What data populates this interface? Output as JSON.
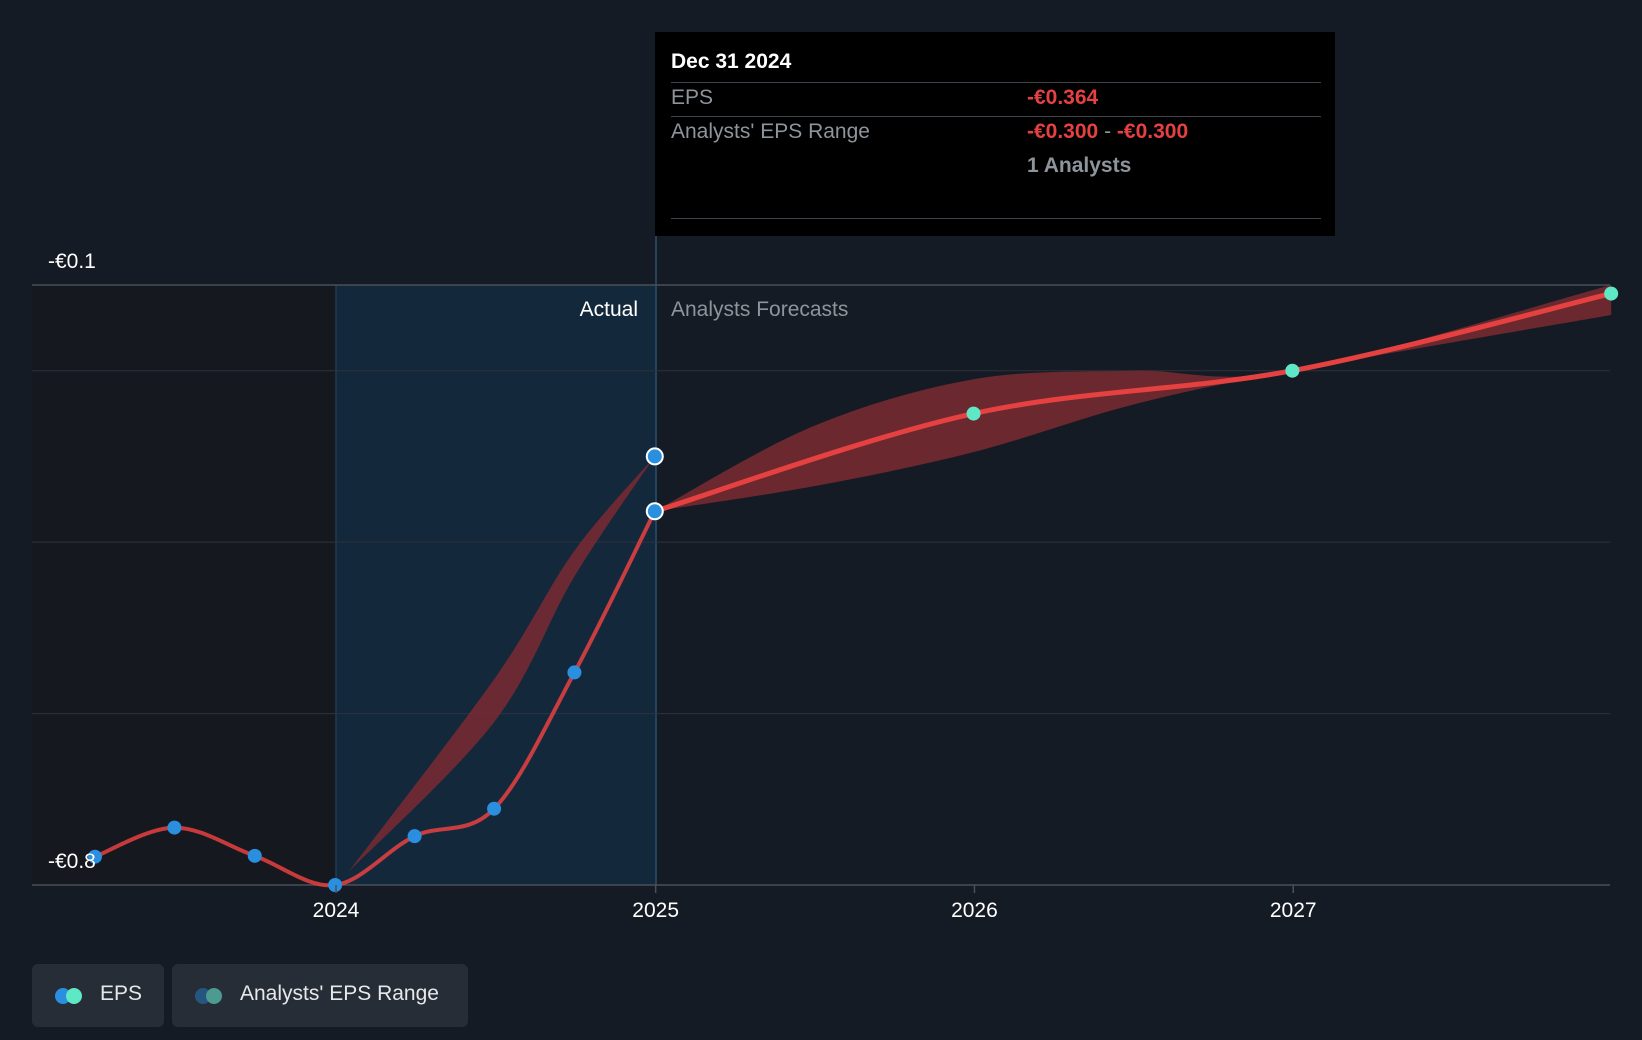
{
  "tooltip": {
    "date": "Dec 31 2024",
    "eps_label": "EPS",
    "eps_value": "-€0.364",
    "range_label": "Analysts' EPS Range",
    "range_low": "-€0.300",
    "range_sep": "-",
    "range_high": "-€0.300",
    "analysts": "1 Analysts"
  },
  "regions": {
    "actual_label": "Actual",
    "forecast_label": "Analysts Forecasts"
  },
  "legend": {
    "eps": "EPS",
    "range": "Analysts' EPS Range"
  },
  "colors": {
    "background": "#151b24",
    "eps_line": "#e64141",
    "actual_point": "#2b8fe0",
    "forecast_point": "#5ee8c6",
    "range_band": "#7a2a31",
    "actual_region": "#14283c"
  },
  "chart_data": {
    "type": "line",
    "y_tick_labels": [
      "-€0.1",
      "-€0.8"
    ],
    "ylim": [
      -0.8,
      -0.1
    ],
    "x_tick_labels": [
      "2024",
      "2025",
      "2026",
      "2027"
    ],
    "grid": true,
    "legend_position": "bottom-left",
    "series": [
      {
        "name": "EPS",
        "points": [
          {
            "x": "2023-03-31",
            "y": -0.767
          },
          {
            "x": "2023-06-30",
            "y": -0.733
          },
          {
            "x": "2023-09-30",
            "y": -0.766
          },
          {
            "x": "2023-12-31",
            "y": -0.8
          },
          {
            "x": "2024-03-31",
            "y": -0.743
          },
          {
            "x": "2024-06-30",
            "y": -0.711
          },
          {
            "x": "2024-09-30",
            "y": -0.552
          },
          {
            "x": "2024-12-31",
            "y": -0.364
          }
        ]
      },
      {
        "name": "EPS",
        "points": [
          {
            "x": "2024-12-31",
            "y": -0.364
          },
          {
            "x": "2025-12-31",
            "y": -0.25
          },
          {
            "x": "2026-12-31",
            "y": -0.2
          },
          {
            "x": "2027-12-31",
            "y": -0.11
          }
        ]
      },
      {
        "name": "Analysts' EPS Range",
        "band": [
          {
            "x": "2024-12-31",
            "low": -0.364,
            "high": -0.364
          },
          {
            "x": "2025-06-30",
            "low": -0.335,
            "high": -0.265
          },
          {
            "x": "2025-12-31",
            "low": -0.295,
            "high": -0.21
          },
          {
            "x": "2026-06-30",
            "low": -0.24,
            "high": -0.2
          },
          {
            "x": "2026-12-31",
            "low": -0.2,
            "high": -0.2
          },
          {
            "x": "2027-12-31",
            "low": -0.135,
            "high": -0.1
          }
        ]
      },
      {
        "name": "Analysts' EPS Range",
        "band": [
          {
            "x": "2024-01-15",
            "low": -0.785,
            "high": -0.785
          },
          {
            "x": "2024-06-30",
            "low": -0.61,
            "high": -0.56
          },
          {
            "x": "2024-09-30",
            "low": -0.44,
            "high": -0.41
          },
          {
            "x": "2024-12-31",
            "low": -0.3,
            "high": -0.3
          }
        ]
      }
    ],
    "highlight": {
      "x": "2024-12-31",
      "eps": -0.364,
      "range_low": -0.3,
      "range_high": -0.3
    }
  }
}
